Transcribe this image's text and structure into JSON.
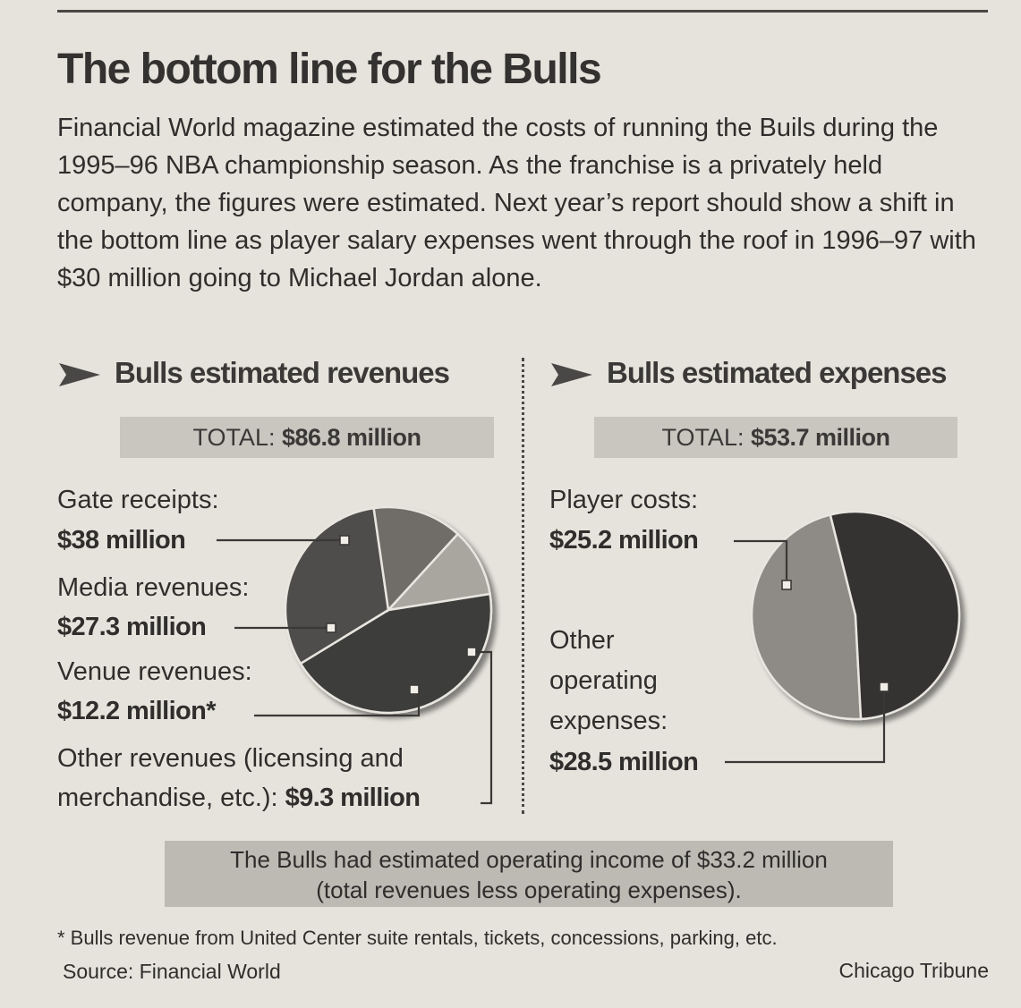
{
  "headline": "The bottom line for the Bulls",
  "intro": "Financial World magazine estimated the costs of running the Buils during the 1995–96 NBA championship season. As the franchise is a privately held company, the figures were estimated. Next year’s report should show a shift in the bottom line as player salary expenses went through the roof in 1996–97 with $30 million going to Michael Jordan alone.",
  "revenues": {
    "heading": "Bulls estimated revenues",
    "total_prefix": "TOTAL: ",
    "total_value": "$86.8 million",
    "items": [
      {
        "label": "Gate receipts:",
        "value": "$38 million"
      },
      {
        "label": "Media revenues:",
        "value": "$27.3 million"
      },
      {
        "label": "Venue revenues:",
        "value": "$12.2 million*"
      },
      {
        "label": "Other revenues (licensing and",
        "label2": "merchandise, etc.): ",
        "value": "$9.3 million"
      }
    ]
  },
  "expenses": {
    "heading": "Bulls estimated expenses",
    "total_prefix": "TOTAL: ",
    "total_value": "$53.7 million",
    "items": [
      {
        "label": "Player costs:",
        "value": "$25.2 million"
      },
      {
        "label": "Other",
        "label2": "operating",
        "label3": "expenses:",
        "value": "$28.5 million"
      }
    ]
  },
  "note": {
    "line1": "The Bulls had estimated operating income of $33.2 million",
    "line2": "(total revenues less operating expenses)."
  },
  "footnote": "* Bulls revenue from United Center suite rentals, tickets, concessions, parking, etc.",
  "source": "Source: Financial World",
  "credit": "Chicago Tribune",
  "colors": {
    "gate": "#3d3c3a",
    "media": "#504e4b",
    "venue": "#6f6c68",
    "other_rev": "#a9a6a0",
    "player": "#8e8b86",
    "other_exp": "#343331",
    "line": "#3a3937"
  },
  "chart_data": [
    {
      "type": "pie",
      "title": "Bulls estimated revenues",
      "categories": [
        "Gate receipts",
        "Media revenues",
        "Venue revenues",
        "Other revenues (licensing and merchandise, etc.)"
      ],
      "values": [
        38,
        27.3,
        12.2,
        9.3
      ],
      "unit": "$ million",
      "total": 86.8
    },
    {
      "type": "pie",
      "title": "Bulls estimated expenses",
      "categories": [
        "Player costs",
        "Other operating expenses"
      ],
      "values": [
        25.2,
        28.5
      ],
      "unit": "$ million",
      "total": 53.7
    }
  ]
}
